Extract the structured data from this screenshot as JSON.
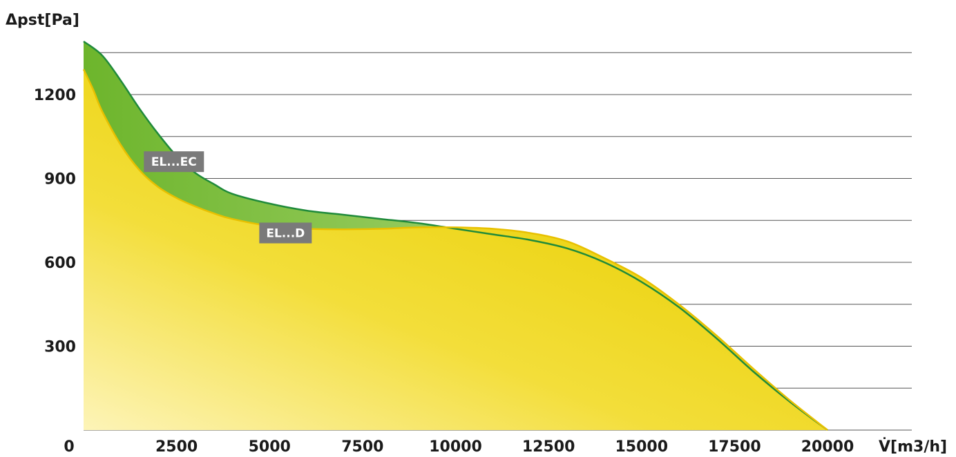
{
  "chart_data": {
    "type": "area",
    "ylabel": "Δpst[Pa]",
    "xlabel": "V̇[m3/h]",
    "xlim": [
      0,
      22500
    ],
    "ylim": [
      0,
      1400
    ],
    "x_ticks": [
      0,
      2500,
      5000,
      7500,
      10000,
      12500,
      15000,
      17500,
      20000
    ],
    "x_tick_labels": [
      "0",
      "2500",
      "5000",
      "7500",
      "10000",
      "12500",
      "15000",
      "17500",
      "20000"
    ],
    "y_ticks": [
      300,
      600,
      900,
      1200
    ],
    "y_tick_labels": [
      "300",
      "600",
      "900",
      "1200"
    ],
    "grid": true,
    "series": [
      {
        "name": "EL...EC",
        "color": "#7cbf35",
        "line_color": "#1f8a3a",
        "label_at": [
          2800,
          960
        ],
        "x": [
          0,
          500,
          1000,
          1500,
          2000,
          2500,
          3000,
          3500,
          4000,
          5000,
          6000,
          7000,
          8000,
          9000,
          10000,
          11000,
          12000,
          13000,
          14000,
          15000,
          16000,
          17000,
          18000,
          19000,
          20000
        ],
        "values": [
          1390,
          1340,
          1250,
          1150,
          1060,
          980,
          920,
          880,
          845,
          810,
          785,
          770,
          755,
          740,
          720,
          700,
          680,
          650,
          600,
          530,
          440,
          330,
          210,
          100,
          0
        ]
      },
      {
        "name": "EL...D",
        "color": "#f0d300",
        "line_color": "#e8c000",
        "label_at": [
          5800,
          705
        ],
        "x": [
          0,
          250,
          500,
          1000,
          1500,
          2000,
          2500,
          3000,
          3500,
          4000,
          5000,
          6000,
          7000,
          8000,
          9000,
          10000,
          11000,
          12000,
          13000,
          14000,
          15000,
          16000,
          17000,
          18000,
          19000,
          20000
        ],
        "values": [
          1290,
          1220,
          1140,
          1020,
          930,
          870,
          830,
          800,
          775,
          755,
          730,
          720,
          718,
          720,
          725,
          725,
          720,
          705,
          675,
          615,
          545,
          450,
          340,
          220,
          105,
          0
        ]
      }
    ]
  }
}
